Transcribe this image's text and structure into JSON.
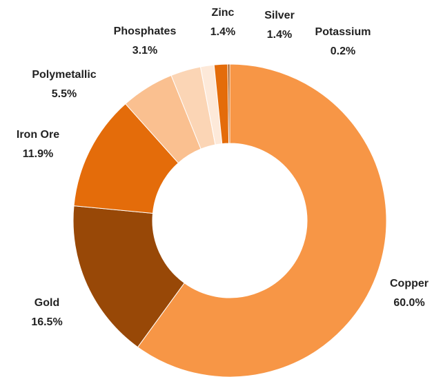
{
  "chart_data": {
    "type": "donut",
    "categories": [
      "Copper",
      "Gold",
      "Iron Ore",
      "Polymetallic",
      "Phosphates",
      "Zinc",
      "Silver",
      "Potassium"
    ],
    "values": [
      60.0,
      16.5,
      11.9,
      5.5,
      3.1,
      1.4,
      1.4,
      0.2
    ],
    "value_labels": [
      "60.0%",
      "16.5%",
      "11.9%",
      "5.5%",
      "3.1%",
      "1.4%",
      "1.4%",
      "0.2%"
    ],
    "colors": [
      "#f79646",
      "#984807",
      "#e46c0a",
      "#fac090",
      "#fbd5b5",
      "#fde9d9",
      "#e46c0a",
      "#984807"
    ]
  }
}
